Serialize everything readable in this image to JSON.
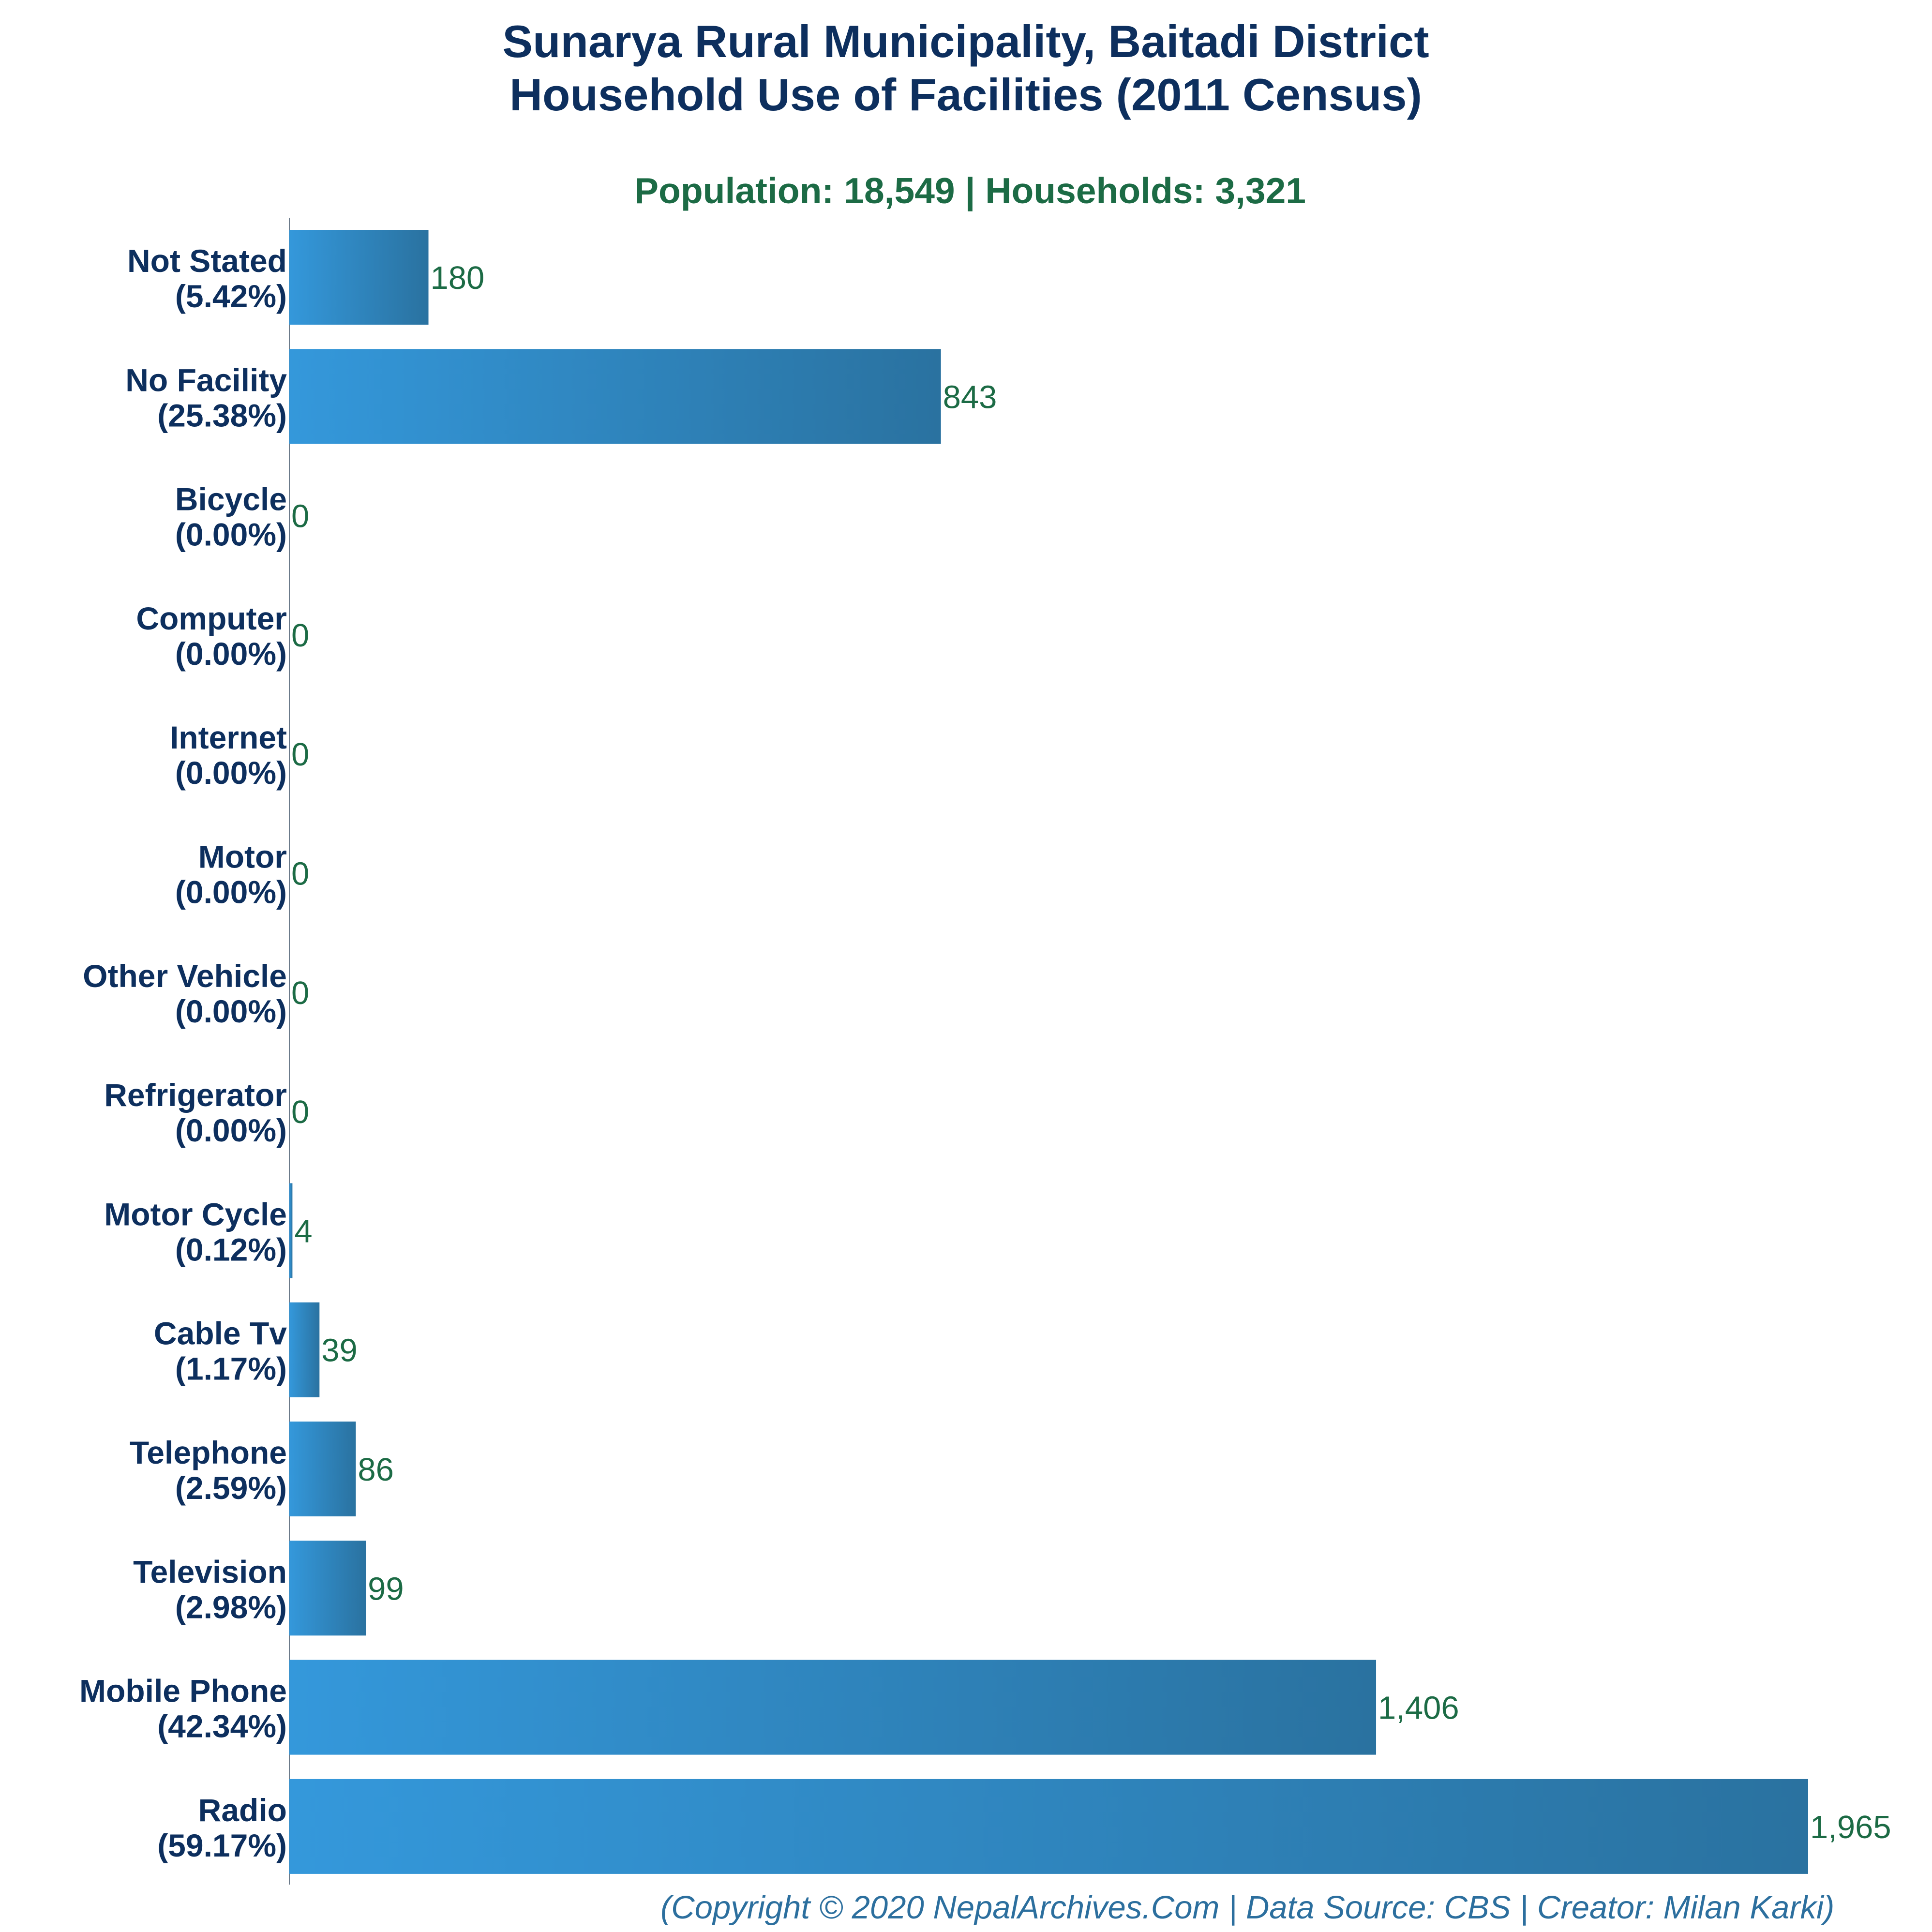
{
  "chart_data": {
    "type": "bar",
    "orientation": "horizontal",
    "title_line1": "Sunarya Rural Municipality, Baitadi District",
    "title_line2": "Household Use of Facilities (2011 Census)",
    "subtitle": "Population: 18,549 | Households: 3,321",
    "categories": [
      "Not Stated",
      "No Facility",
      "Bicycle",
      "Computer",
      "Internet",
      "Motor",
      "Other Vehicle",
      "Refrigerator",
      "Motor Cycle",
      "Cable Tv",
      "Telephone",
      "Television",
      "Mobile Phone",
      "Radio"
    ],
    "percents": [
      "(5.42%)",
      "(25.38%)",
      "(0.00%)",
      "(0.00%)",
      "(0.00%)",
      "(0.00%)",
      "(0.00%)",
      "(0.00%)",
      "(0.12%)",
      "(1.17%)",
      "(2.59%)",
      "(2.98%)",
      "(42.34%)",
      "(59.17%)"
    ],
    "values": [
      180,
      843,
      0,
      0,
      0,
      0,
      0,
      0,
      4,
      39,
      86,
      99,
      1406,
      1965
    ],
    "value_labels": [
      "180",
      "843",
      "0",
      "0",
      "0",
      "0",
      "0",
      "0",
      "4",
      "39",
      "86",
      "99",
      "1,406",
      "1,965"
    ],
    "xlim": [
      0,
      1965
    ],
    "grid": false,
    "legend": "none",
    "colors": {
      "bar_light": "#3498db",
      "bar_dark": "#2a72a0",
      "title": "#0d2f5e",
      "subtitle": "#1c6b45",
      "value_label": "#1c6b45",
      "footer": "#2c6f9e"
    }
  },
  "footer": "(Copyright © 2020 NepalArchives.Com | Data Source: CBS | Creator: Milan Karki)"
}
